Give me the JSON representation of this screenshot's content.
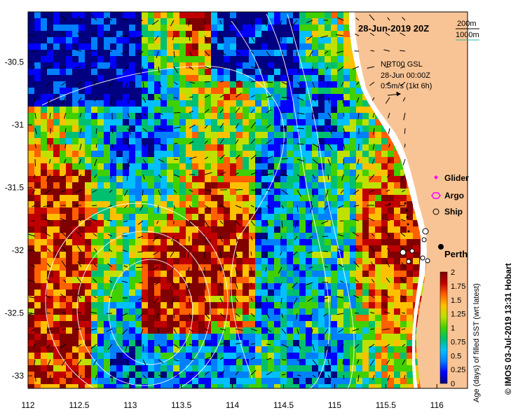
{
  "map": {
    "title": "28-Jun-2019 20Z",
    "contour_legend": [
      "200m",
      "1000m"
    ],
    "contour_legend_colors": [
      "#000000",
      "#2fb7a8"
    ],
    "current_info": [
      "NRT00 GSL",
      "28-Jun 00:00Z",
      "0.5m/s (1kt 6h)"
    ],
    "lon_ticks": [
      "112",
      "112.5",
      "113",
      "113.5",
      "114",
      "114.5",
      "115",
      "115.5",
      "116"
    ],
    "lat_ticks": [
      "-30.5",
      "-31",
      "-31.5",
      "-32",
      "-32.5",
      "-33"
    ],
    "lon_range": [
      112,
      116.3
    ],
    "lat_range": [
      -33.1,
      -30.1
    ],
    "city": {
      "name": "Perth",
      "lon": 115.86,
      "lat": -31.95
    },
    "platform_legend": [
      {
        "label": "Glider",
        "symbol": "diamond-icon",
        "color": "#ff00ff"
      },
      {
        "label": "Argo",
        "symbol": "hex-icon",
        "color": "#ff00ff"
      },
      {
        "label": "Ship",
        "symbol": "circle-icon",
        "color": "#000000"
      }
    ],
    "colorbar": {
      "label": "Age (days) of filled SST (wrt latest)",
      "ticks": [
        "0",
        "0.25",
        "0.5",
        "0.75",
        "1",
        "1.25",
        "1.5",
        "1.75",
        "2"
      ],
      "colors": [
        "#000080",
        "#0000ff",
        "#0080ff",
        "#00c0ff",
        "#00c070",
        "#40d000",
        "#c0e000",
        "#ffc000",
        "#ff6000",
        "#c00000",
        "#800000"
      ]
    },
    "land_color": "#f9c495",
    "credit": "© IMOS 03-Jul-2019 13:31 Hobart"
  }
}
